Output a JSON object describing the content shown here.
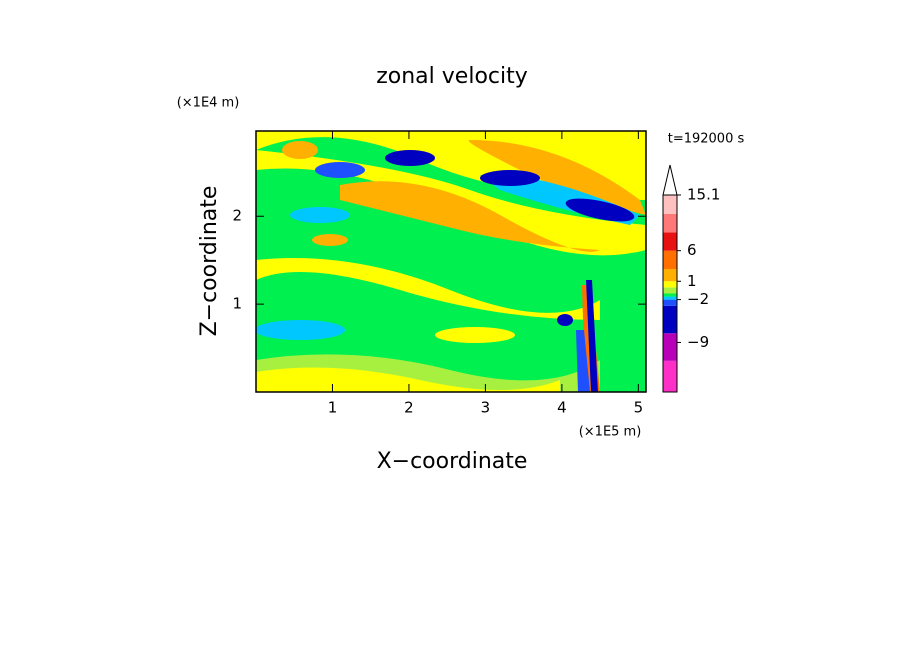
{
  "chart_data": {
    "type": "contour",
    "title": "zonal velocity",
    "x_label": "X−coordinate",
    "y_label": "Z−coordinate",
    "x_unit": "(×1E5 m)",
    "y_unit": "(×1E4 m)",
    "time_label": "t=192000 s",
    "xlim": [
      0,
      5.1
    ],
    "xticks": [
      1,
      2,
      3,
      4,
      5
    ],
    "ylim": [
      0,
      2.97
    ],
    "yticks": [
      1,
      2
    ],
    "colorbar": {
      "lim": [
        -17.1,
        15.1
      ],
      "levels": [
        -17.1,
        -12,
        -7.5,
        -3,
        -2,
        -1.5,
        -1,
        0,
        1,
        3,
        6,
        9,
        12,
        15.1
      ],
      "colors": [
        "#ff30c8",
        "#b800b8",
        "#0000c0",
        "#1e50ff",
        "#00c8ff",
        "#00f050",
        "#a8f040",
        "#ffff00",
        "#ffb000",
        "#ff7000",
        "#e81010",
        "#ff7878",
        "#ffc0c0"
      ],
      "ticks": [
        15.1,
        6,
        1,
        {
          "value": -2,
          "label": "−2"
        },
        {
          "value": -9,
          "label": "−9"
        }
      ],
      "extend_max": true
    }
  }
}
